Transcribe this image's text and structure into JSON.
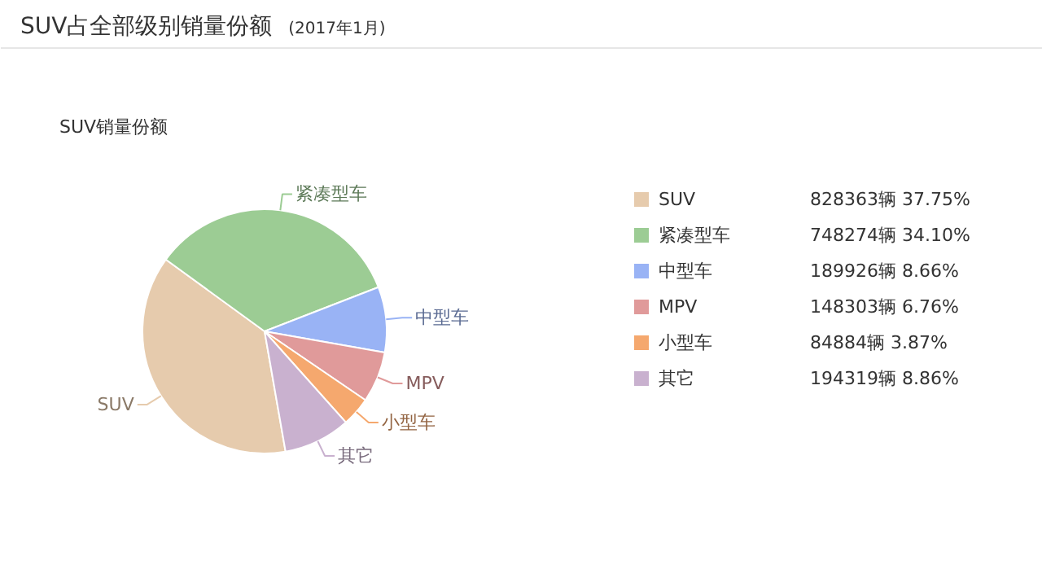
{
  "chart_data": {
    "type": "pie",
    "title": "SUV占全部级别销量份额",
    "subtitle": "(2017年1月)",
    "annotations": [
      "SUV销量份额"
    ],
    "categories": [
      "SUV",
      "紧凑型车",
      "中型车",
      "MPV",
      "小型车",
      "其它"
    ],
    "values": [
      828363,
      748274,
      189926,
      148303,
      84884,
      194319
    ],
    "value_labels": [
      "828363辆 37.75%",
      "748274辆 34.10%",
      "189926辆 8.66%",
      "148303辆 6.76%",
      "84884辆  3.87%",
      "194319辆 8.86%"
    ],
    "colors": [
      "#e6cbad",
      "#9ccc94",
      "#99b3f5",
      "#e09a9a",
      "#f5a86e",
      "#c9b1cf"
    ],
    "legend": "right"
  }
}
